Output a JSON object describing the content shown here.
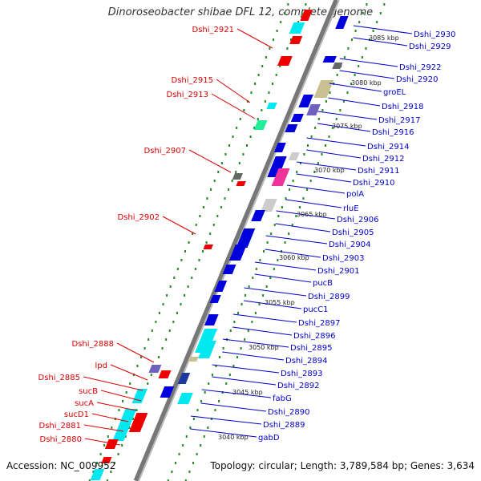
{
  "title": "Dinoroseobacter shibae DFL 12, complete genome",
  "footer": {
    "accession": "Accession: NC_009952",
    "summary": "Topology: circular; Length: 3,789,584 bp; Genes: 3,634"
  },
  "colors": {
    "left_label": "#dd0000",
    "right_label": "#0000cc",
    "gene_blue": "#0000dd",
    "gene_red": "#ee0000",
    "gene_cyan": "#00e8f0",
    "tick_green": "#228822",
    "backbone": "#888888"
  },
  "ticks": [
    "3085 kbp",
    "3080 kbp",
    "3075 kbp",
    "3070 kbp",
    "3065 kbp",
    "3060 kbp",
    "3055 kbp",
    "3050 kbp",
    "3045 kbp",
    "3040 kbp"
  ],
  "left_labels": [
    "Dshi_2921",
    "Dshi_2915",
    "Dshi_2913",
    "Dshi_2907",
    "Dshi_2902",
    "Dshi_2888",
    "lpd",
    "Dshi_2885",
    "sucB",
    "sucA",
    "sucD1",
    "Dshi_2881",
    "Dshi_2880"
  ],
  "right_labels": [
    "Dshi_2930",
    "Dshi_2929",
    "Dshi_2922",
    "Dshi_2920",
    "groEL",
    "Dshi_2918",
    "Dshi_2917",
    "Dshi_2916",
    "Dshi_2914",
    "Dshi_2912",
    "Dshi_2911",
    "Dshi_2910",
    "polA",
    "rluE",
    "Dshi_2906",
    "Dshi_2905",
    "Dshi_2904",
    "Dshi_2903",
    "Dshi_2901",
    "pucB",
    "Dshi_2899",
    "pucC1",
    "Dshi_2897",
    "Dshi_2896",
    "Dshi_2895",
    "Dshi_2894",
    "Dshi_2893",
    "Dshi_2892",
    "fabG",
    "Dshi_2890",
    "Dshi_2889",
    "gabD"
  ]
}
